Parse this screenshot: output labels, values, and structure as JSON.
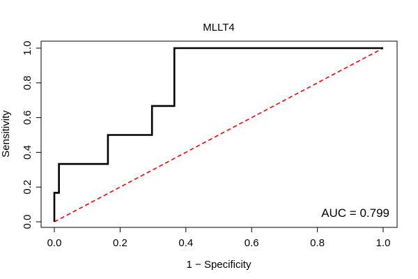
{
  "chart_data": {
    "type": "line",
    "title": "MLLT4",
    "xlabel": "1 − Specificity",
    "ylabel": "Sensitivity",
    "xlim": [
      0,
      1
    ],
    "ylim": [
      0,
      1
    ],
    "xticks": [
      0.0,
      0.2,
      0.4,
      0.6,
      0.8,
      1.0
    ],
    "yticks": [
      0.0,
      0.2,
      0.4,
      0.6,
      0.8,
      1.0
    ],
    "xtick_labels": [
      "0.0",
      "0.2",
      "0.4",
      "0.6",
      "0.8",
      "1.0"
    ],
    "ytick_labels": [
      "0.0",
      "0.2",
      "0.4",
      "0.6",
      "0.8",
      "1.0"
    ],
    "series": [
      {
        "name": "ROC curve",
        "color": "#000000",
        "style": "solid",
        "x": [
          0.0,
          0.0,
          0.0,
          0.014,
          0.014,
          0.163,
          0.163,
          0.297,
          0.297,
          0.365,
          0.365,
          1.0
        ],
        "y": [
          0.0,
          0.167,
          0.167,
          0.167,
          0.333,
          0.333,
          0.5,
          0.5,
          0.667,
          0.667,
          1.0,
          1.0
        ]
      },
      {
        "name": "Reference diagonal",
        "color": "#ff0000",
        "style": "dashed",
        "x": [
          0.0,
          1.0
        ],
        "y": [
          0.0,
          1.0
        ]
      }
    ],
    "annotation": {
      "text": "AUC = 0.799",
      "position": "bottom-right"
    }
  }
}
